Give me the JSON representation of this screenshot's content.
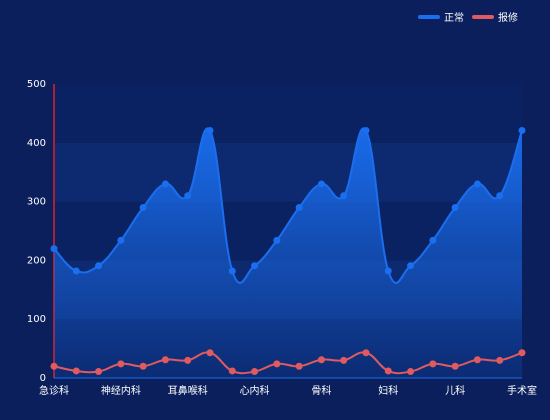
{
  "chart_data": {
    "type": "line",
    "categories": [
      "急诊科",
      null,
      null,
      "神经内科",
      null,
      null,
      "耳鼻喉科",
      null,
      null,
      "心内科",
      null,
      null,
      "骨科",
      null,
      null,
      "妇科",
      null,
      null,
      "儿科",
      null,
      null,
      "手术室"
    ],
    "series": [
      {
        "name": "正常",
        "color": "#1a6ef0",
        "area": true,
        "values": [
          220,
          182,
          191,
          234,
          290,
          330,
          310,
          421,
          182,
          191,
          234,
          290,
          330,
          310,
          421,
          182,
          191,
          234,
          290,
          330,
          310,
          421
        ]
      },
      {
        "name": "报修",
        "color": "#e05a5f",
        "area": false,
        "values": [
          20,
          12,
          11,
          24,
          20,
          31,
          30,
          43,
          12,
          11,
          24,
          20,
          31,
          30,
          43,
          12,
          11,
          24,
          20,
          31,
          30,
          43
        ]
      }
    ],
    "ylim": [
      0,
      500
    ],
    "yticks": [
      0,
      100,
      200,
      300,
      400,
      500
    ],
    "legend": "top-right"
  }
}
